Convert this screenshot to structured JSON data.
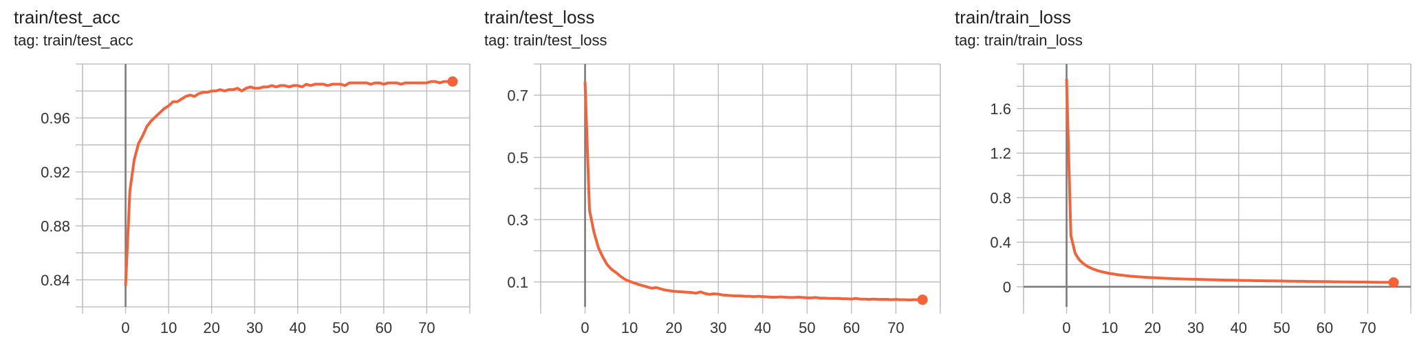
{
  "colors": {
    "series": "#f4623a",
    "grid": "#b8b8b8",
    "axis": "#7a7a7a"
  },
  "chart_data": [
    {
      "type": "line",
      "title": "train/test_acc",
      "tag": "tag: train/test_acc",
      "xlim": [
        -10,
        80
      ],
      "ylim": [
        0.82,
        1.0
      ],
      "xticks": [
        0,
        10,
        20,
        30,
        40,
        50,
        60,
        70
      ],
      "yticks": [
        0.84,
        0.88,
        0.92,
        0.96
      ],
      "ytick_labels": [
        "0.84",
        "0.88",
        "0.92",
        "0.96"
      ],
      "grid": true,
      "series": [
        {
          "x": [
            0,
            1,
            2,
            3,
            4,
            5,
            6,
            7,
            8,
            9,
            10,
            11,
            12,
            13,
            14,
            15,
            16,
            17,
            18,
            19,
            20,
            21,
            22,
            23,
            24,
            25,
            26,
            27,
            28,
            29,
            30,
            31,
            32,
            33,
            34,
            35,
            36,
            37,
            38,
            39,
            40,
            41,
            42,
            43,
            44,
            45,
            46,
            47,
            48,
            49,
            50,
            51,
            52,
            53,
            54,
            55,
            56,
            57,
            58,
            59,
            60,
            61,
            62,
            63,
            64,
            65,
            66,
            67,
            68,
            69,
            70,
            71,
            72,
            73,
            74,
            75,
            76
          ],
          "y": [
            0.836,
            0.906,
            0.929,
            0.941,
            0.947,
            0.954,
            0.958,
            0.961,
            0.964,
            0.967,
            0.969,
            0.972,
            0.972,
            0.974,
            0.976,
            0.977,
            0.976,
            0.978,
            0.979,
            0.979,
            0.98,
            0.98,
            0.981,
            0.98,
            0.981,
            0.981,
            0.982,
            0.98,
            0.982,
            0.983,
            0.982,
            0.982,
            0.983,
            0.983,
            0.984,
            0.983,
            0.984,
            0.984,
            0.983,
            0.984,
            0.984,
            0.983,
            0.985,
            0.984,
            0.985,
            0.985,
            0.985,
            0.984,
            0.985,
            0.985,
            0.985,
            0.984,
            0.986,
            0.986,
            0.986,
            0.986,
            0.986,
            0.985,
            0.986,
            0.986,
            0.985,
            0.986,
            0.986,
            0.986,
            0.985,
            0.986,
            0.986,
            0.986,
            0.986,
            0.986,
            0.986,
            0.987,
            0.987,
            0.986,
            0.987,
            0.987,
            0.987
          ]
        }
      ]
    },
    {
      "type": "line",
      "title": "train/test_loss",
      "tag": "tag: train/test_loss",
      "xlim": [
        -10,
        80
      ],
      "ylim": [
        0.02,
        0.8
      ],
      "xticks": [
        0,
        10,
        20,
        30,
        40,
        50,
        60,
        70
      ],
      "yticks": [
        0.1,
        0.3,
        0.5,
        0.7
      ],
      "ytick_labels": [
        "0.1",
        "0.3",
        "0.5",
        "0.7"
      ],
      "grid": true,
      "series": [
        {
          "x": [
            0,
            1,
            2,
            3,
            4,
            5,
            6,
            7,
            8,
            9,
            10,
            11,
            12,
            13,
            14,
            15,
            16,
            17,
            18,
            19,
            20,
            21,
            22,
            23,
            24,
            25,
            26,
            27,
            28,
            29,
            30,
            31,
            32,
            33,
            34,
            35,
            36,
            37,
            38,
            39,
            40,
            41,
            42,
            43,
            44,
            45,
            46,
            47,
            48,
            49,
            50,
            51,
            52,
            53,
            54,
            55,
            56,
            57,
            58,
            59,
            60,
            61,
            62,
            63,
            64,
            65,
            66,
            67,
            68,
            69,
            70,
            71,
            72,
            73,
            74,
            75,
            76
          ],
          "y": [
            0.74,
            0.33,
            0.26,
            0.21,
            0.18,
            0.155,
            0.14,
            0.13,
            0.118,
            0.108,
            0.102,
            0.097,
            0.092,
            0.088,
            0.084,
            0.08,
            0.082,
            0.078,
            0.074,
            0.072,
            0.07,
            0.069,
            0.068,
            0.067,
            0.066,
            0.064,
            0.068,
            0.063,
            0.06,
            0.062,
            0.061,
            0.058,
            0.057,
            0.056,
            0.055,
            0.055,
            0.054,
            0.054,
            0.053,
            0.054,
            0.053,
            0.052,
            0.051,
            0.051,
            0.052,
            0.051,
            0.05,
            0.05,
            0.051,
            0.05,
            0.049,
            0.049,
            0.05,
            0.048,
            0.048,
            0.047,
            0.047,
            0.047,
            0.046,
            0.046,
            0.045,
            0.047,
            0.045,
            0.045,
            0.044,
            0.045,
            0.044,
            0.044,
            0.044,
            0.043,
            0.044,
            0.043,
            0.043,
            0.042,
            0.043,
            0.043,
            0.043
          ]
        }
      ]
    },
    {
      "type": "line",
      "title": "train/train_loss",
      "tag": "tag: train/train_loss",
      "xlim": [
        -10,
        80
      ],
      "ylim": [
        -0.18,
        2.0
      ],
      "xticks": [
        0,
        10,
        20,
        30,
        40,
        50,
        60,
        70
      ],
      "yticks": [
        0,
        0.4,
        0.8,
        1.2,
        1.6
      ],
      "ytick_labels": [
        "0",
        "0.4",
        "0.8",
        "1.2",
        "1.6"
      ],
      "grid": true,
      "series": [
        {
          "x": [
            0,
            1,
            2,
            3,
            4,
            5,
            6,
            7,
            8,
            9,
            10,
            11,
            12,
            13,
            14,
            15,
            16,
            17,
            18,
            19,
            20,
            21,
            22,
            23,
            24,
            25,
            26,
            27,
            28,
            29,
            30,
            31,
            32,
            33,
            34,
            35,
            36,
            37,
            38,
            39,
            40,
            41,
            42,
            43,
            44,
            45,
            46,
            47,
            48,
            49,
            50,
            51,
            52,
            53,
            54,
            55,
            56,
            57,
            58,
            59,
            60,
            61,
            62,
            63,
            64,
            65,
            66,
            67,
            68,
            69,
            70,
            71,
            72,
            73,
            74,
            75,
            76
          ],
          "y": [
            1.86,
            0.46,
            0.3,
            0.24,
            0.205,
            0.18,
            0.162,
            0.148,
            0.137,
            0.128,
            0.12,
            0.114,
            0.108,
            0.103,
            0.099,
            0.095,
            0.092,
            0.089,
            0.086,
            0.084,
            0.082,
            0.08,
            0.078,
            0.076,
            0.075,
            0.073,
            0.072,
            0.07,
            0.069,
            0.068,
            0.067,
            0.066,
            0.065,
            0.064,
            0.063,
            0.062,
            0.061,
            0.06,
            0.06,
            0.059,
            0.058,
            0.057,
            0.057,
            0.056,
            0.055,
            0.055,
            0.054,
            0.053,
            0.053,
            0.052,
            0.052,
            0.051,
            0.05,
            0.05,
            0.049,
            0.049,
            0.048,
            0.048,
            0.047,
            0.047,
            0.046,
            0.046,
            0.045,
            0.045,
            0.044,
            0.044,
            0.043,
            0.043,
            0.042,
            0.042,
            0.042,
            0.041,
            0.041,
            0.04,
            0.04,
            0.04,
            0.039
          ]
        }
      ]
    }
  ]
}
